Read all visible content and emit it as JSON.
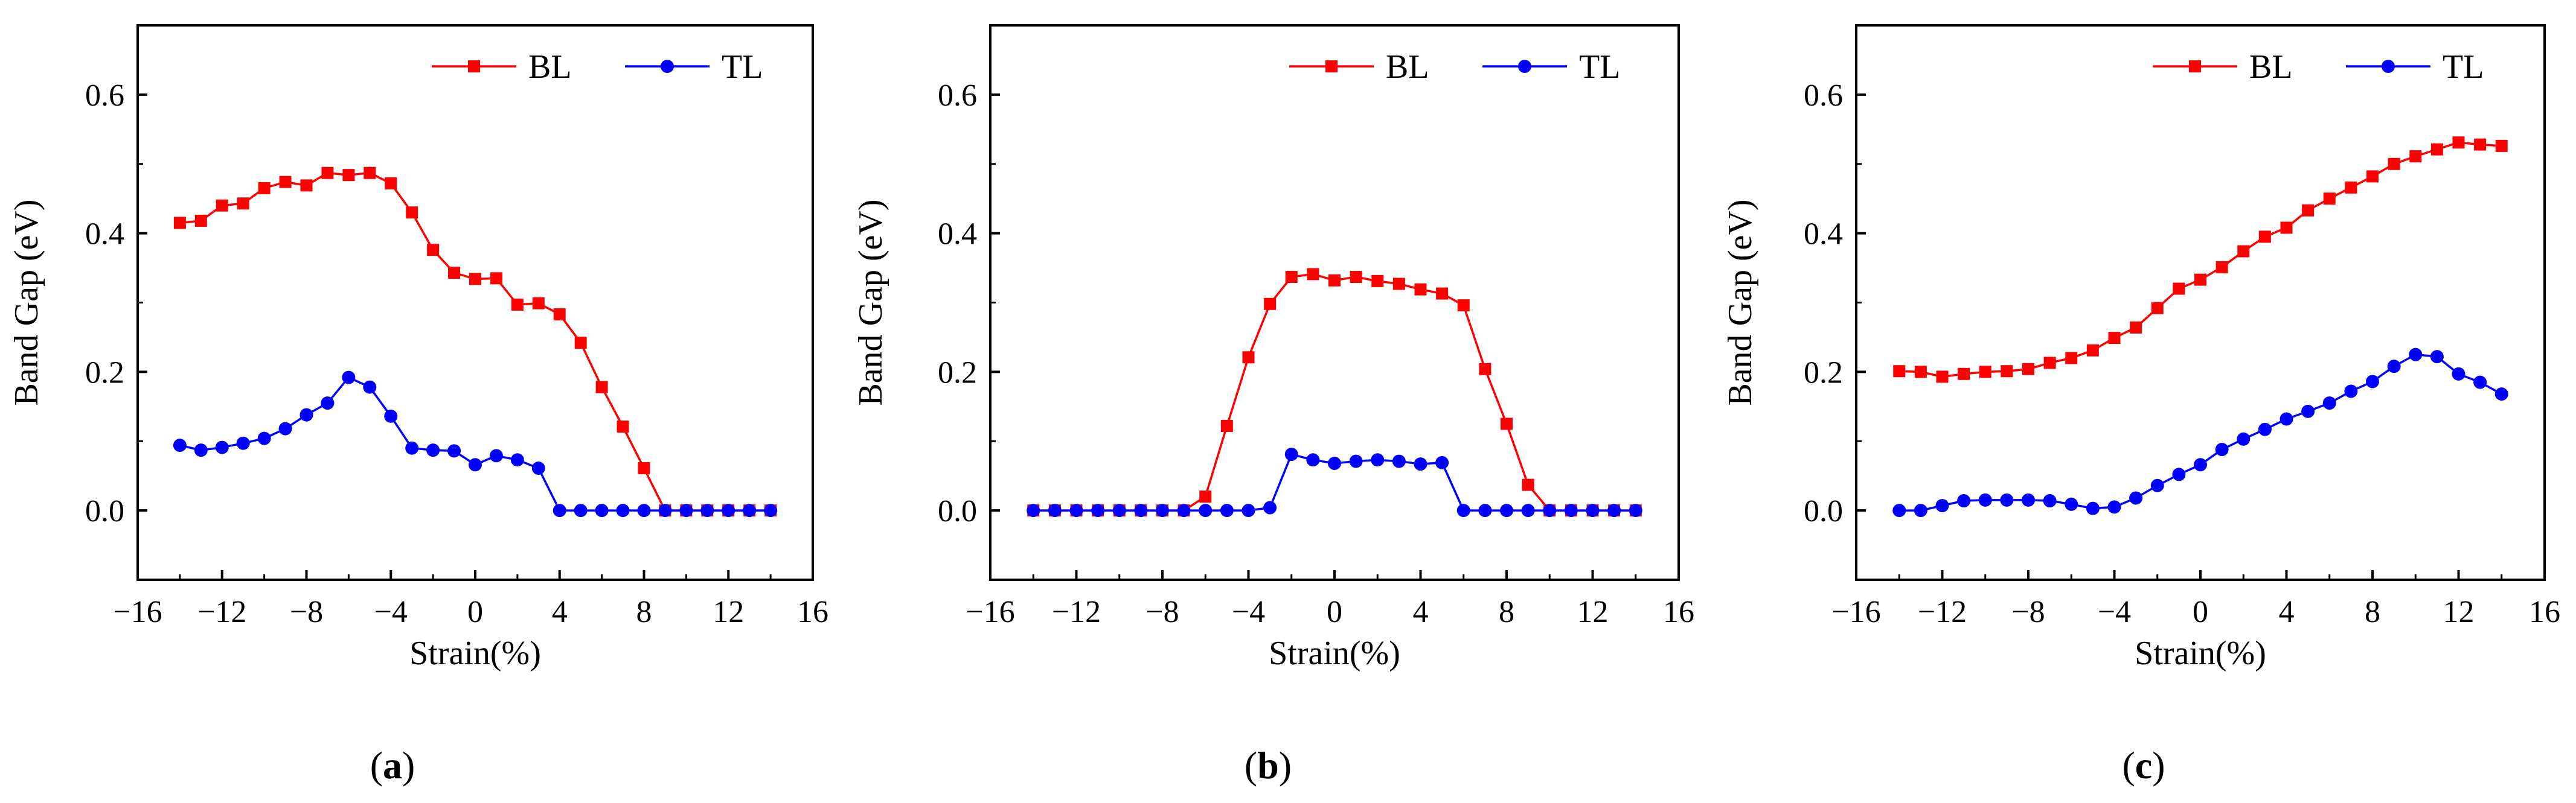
{
  "chart_data": [
    {
      "type": "line",
      "panel_label": "(a)",
      "panel_letter": "a",
      "xlabel": "Strain(%)",
      "ylabel": "Band Gap (eV)",
      "xlim": [
        -16,
        16
      ],
      "ylim": [
        -0.1,
        0.7
      ],
      "xticks": [
        -16,
        -12,
        -8,
        -4,
        0,
        4,
        8,
        12,
        16
      ],
      "yticks": [
        0.0,
        0.2,
        0.4,
        0.6
      ],
      "x": [
        -14,
        -13,
        -12,
        -11,
        -10,
        -9,
        -8,
        -7,
        -6,
        -5,
        -4,
        -3,
        -2,
        -1,
        0,
        1,
        2,
        3,
        4,
        5,
        6,
        7,
        8,
        9,
        10,
        11,
        12,
        13,
        14
      ],
      "legend": "top-right",
      "series": [
        {
          "name": "BL",
          "color": "#ff0000",
          "marker": "square",
          "values": [
            0.415,
            0.418,
            0.44,
            0.443,
            0.465,
            0.474,
            0.469,
            0.487,
            0.484,
            0.487,
            0.472,
            0.43,
            0.376,
            0.343,
            0.334,
            0.335,
            0.297,
            0.299,
            0.283,
            0.242,
            0.178,
            0.121,
            0.061,
            0.0,
            0.0,
            0.0,
            0.0,
            0.0,
            0.0
          ]
        },
        {
          "name": "TL",
          "color": "#0000ff",
          "marker": "circle",
          "values": [
            0.094,
            0.087,
            0.091,
            0.097,
            0.104,
            0.118,
            0.138,
            0.155,
            0.192,
            0.178,
            0.136,
            0.09,
            0.087,
            0.086,
            0.066,
            0.079,
            0.073,
            0.061,
            0.0,
            0.0,
            0.0,
            0.0,
            0.0,
            0.0,
            0.0,
            0.0,
            0.0,
            0.0,
            0.0
          ]
        }
      ]
    },
    {
      "type": "line",
      "panel_label": "(b)",
      "panel_letter": "b",
      "xlabel": "Strain(%)",
      "ylabel": "Band Gap (eV)",
      "xlim": [
        -16,
        16
      ],
      "ylim": [
        -0.1,
        0.7
      ],
      "xticks": [
        -16,
        -12,
        -8,
        -4,
        0,
        4,
        8,
        12,
        16
      ],
      "yticks": [
        0.0,
        0.2,
        0.4,
        0.6
      ],
      "x": [
        -14,
        -13,
        -12,
        -11,
        -10,
        -9,
        -8,
        -7,
        -6,
        -5,
        -4,
        -3,
        -2,
        -1,
        0,
        1,
        2,
        3,
        4,
        5,
        6,
        7,
        8,
        9,
        10,
        11,
        12,
        13,
        14
      ],
      "legend": "top-right",
      "series": [
        {
          "name": "BL",
          "color": "#ff0000",
          "marker": "square",
          "values": [
            0.0,
            0.0,
            0.0,
            0.0,
            0.0,
            0.0,
            0.0,
            0.0,
            0.02,
            0.122,
            0.221,
            0.298,
            0.337,
            0.341,
            0.332,
            0.337,
            0.331,
            0.327,
            0.319,
            0.313,
            0.296,
            0.204,
            0.125,
            0.037,
            0.0,
            0.0,
            0.0,
            0.0,
            0.0
          ]
        },
        {
          "name": "TL",
          "color": "#0000ff",
          "marker": "circle",
          "values": [
            0.0,
            0.0,
            0.0,
            0.0,
            0.0,
            0.0,
            0.0,
            0.0,
            0.0,
            0.0,
            0.0,
            0.004,
            0.081,
            0.073,
            0.068,
            0.071,
            0.073,
            0.071,
            0.067,
            0.069,
            0.0,
            0.0,
            0.0,
            0.0,
            0.0,
            0.0,
            0.0,
            0.0,
            0.0
          ]
        }
      ]
    },
    {
      "type": "line",
      "panel_label": "(c)",
      "panel_letter": "c",
      "xlabel": "Strain(%)",
      "ylabel": "Band Gap (eV)",
      "xlim": [
        -16,
        16
      ],
      "ylim": [
        -0.1,
        0.7
      ],
      "xticks": [
        -16,
        -12,
        -8,
        -4,
        0,
        4,
        8,
        12,
        16
      ],
      "yticks": [
        0.0,
        0.2,
        0.4,
        0.6
      ],
      "x": [
        -14,
        -13,
        -12,
        -11,
        -10,
        -9,
        -8,
        -7,
        -6,
        -5,
        -4,
        -3,
        -2,
        -1,
        0,
        1,
        2,
        3,
        4,
        5,
        6,
        7,
        8,
        9,
        10,
        11,
        12,
        13,
        14
      ],
      "legend": "top-right",
      "series": [
        {
          "name": "BL",
          "color": "#ff0000",
          "marker": "square",
          "values": [
            0.201,
            0.2,
            0.193,
            0.197,
            0.2,
            0.201,
            0.204,
            0.213,
            0.22,
            0.231,
            0.249,
            0.264,
            0.292,
            0.32,
            0.333,
            0.351,
            0.374,
            0.395,
            0.408,
            0.433,
            0.45,
            0.466,
            0.482,
            0.5,
            0.511,
            0.521,
            0.531,
            0.528,
            0.526
          ]
        },
        {
          "name": "TL",
          "color": "#0000ff",
          "marker": "circle",
          "values": [
            0.0,
            0.0,
            0.007,
            0.014,
            0.015,
            0.015,
            0.015,
            0.014,
            0.009,
            0.003,
            0.005,
            0.018,
            0.036,
            0.052,
            0.066,
            0.088,
            0.103,
            0.117,
            0.132,
            0.143,
            0.155,
            0.172,
            0.186,
            0.208,
            0.225,
            0.222,
            0.197,
            0.185,
            0.168
          ]
        }
      ]
    }
  ]
}
